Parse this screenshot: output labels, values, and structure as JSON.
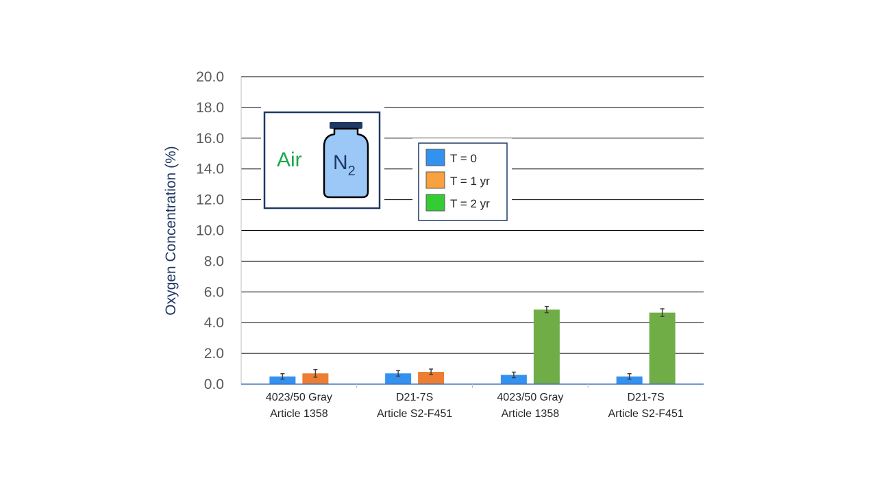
{
  "chart_data": {
    "type": "bar",
    "title": "",
    "ylabel": "Oxygen Concentration (%)",
    "xlabel": "",
    "ylim": [
      0,
      20
    ],
    "yticks": [
      "0.0",
      "2.0",
      "4.0",
      "6.0",
      "8.0",
      "10.0",
      "12.0",
      "14.0",
      "16.0",
      "18.0",
      "20.0"
    ],
    "categories": [
      [
        "4023/50 Gray",
        "Article 1358"
      ],
      [
        "D21-7S",
        "Article S2-F451"
      ],
      [
        "4023/50 Gray",
        "Article 1358"
      ],
      [
        "D21-7S",
        "Article S2-F451"
      ]
    ],
    "series": [
      {
        "name": "T = 0",
        "color": "#3391f0",
        "values": [
          0.5,
          0.7,
          0.6,
          0.5
        ],
        "errors": [
          0.18,
          0.18,
          0.18,
          0.18
        ]
      },
      {
        "name": "T = 1 yr",
        "color": "#ed7d31",
        "values": [
          0.7,
          0.8,
          null,
          null
        ],
        "errors": [
          0.25,
          0.18,
          null,
          null
        ]
      },
      {
        "name": "T = 2 yr",
        "color": "#70ad47",
        "values": [
          null,
          null,
          4.85,
          4.65
        ],
        "errors": [
          null,
          null,
          0.2,
          0.25
        ]
      }
    ],
    "legend": {
      "placement": "top-center",
      "entries": [
        {
          "label": "T = 0",
          "color": "#3391f0"
        },
        {
          "label": "T = 1 yr",
          "color": "#f8a13f"
        },
        {
          "label": "T = 2 yr",
          "color": "#33cc33"
        }
      ]
    },
    "grid": true
  },
  "inset": {
    "air_label": "Air",
    "n2_label": "N",
    "n2_subscript": "2"
  }
}
